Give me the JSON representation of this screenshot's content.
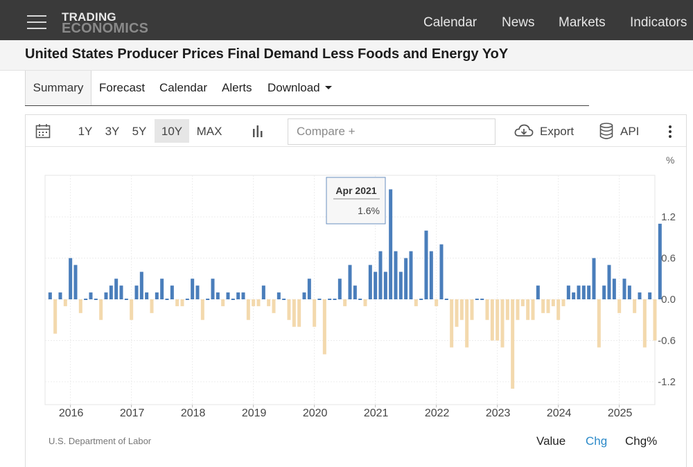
{
  "nav": {
    "logo_line1": "TRADING",
    "logo_line2": "ECONOMICS",
    "links": [
      "Calendar",
      "News",
      "Markets",
      "Indicators"
    ]
  },
  "page_title": "United States Producer Prices Final Demand Less Foods and Energy YoY",
  "tabs": [
    "Summary",
    "Forecast",
    "Calendar",
    "Alerts",
    "Download"
  ],
  "toolbar": {
    "ranges": [
      "1Y",
      "3Y",
      "5Y",
      "10Y",
      "MAX"
    ],
    "active_range": "10Y",
    "compare_placeholder": "Compare +",
    "export_label": "Export",
    "api_label": "API"
  },
  "colors": {
    "positive": "#4a7ebb",
    "negative": "#f3d9ad",
    "accent": "#2a89c8"
  },
  "chart_data": {
    "type": "bar",
    "title": "United States Producer Prices Final Demand Less Foods and Energy YoY",
    "unit_label": "%",
    "ylim": [
      -1.4,
      1.9
    ],
    "yticks": [
      "1.2",
      "0.6",
      "0.0",
      "-0.6",
      "-1.2"
    ],
    "ytick_values": [
      1.2,
      0.6,
      0.0,
      -0.6,
      -1.2
    ],
    "xticks": [
      "2016",
      "2017",
      "2018",
      "2019",
      "2020",
      "2021",
      "2022",
      "2023",
      "2024",
      "2025"
    ],
    "grid": true,
    "start": "2015-09",
    "x_range_months": [
      "2015-08",
      "2025-08"
    ],
    "values": [
      0.1,
      -0.5,
      0.1,
      -0.1,
      0.6,
      0.5,
      -0.2,
      0.0,
      0.1,
      0.0,
      -0.3,
      0.1,
      0.2,
      0.3,
      0.2,
      0.0,
      -0.3,
      0.2,
      0.4,
      0.1,
      -0.2,
      0.1,
      0.3,
      0.0,
      0.2,
      -0.1,
      -0.1,
      0.0,
      0.3,
      0.2,
      -0.3,
      0.0,
      0.3,
      0.1,
      -0.1,
      0.1,
      0.0,
      0.1,
      0.1,
      -0.3,
      -0.1,
      -0.1,
      0.2,
      -0.1,
      -0.2,
      0.1,
      0.0,
      -0.3,
      -0.4,
      -0.4,
      0.1,
      0.3,
      -0.4,
      0.0,
      -0.8,
      0.0,
      0.0,
      0.3,
      -0.1,
      0.5,
      0.2,
      0.0,
      -0.1,
      0.5,
      0.4,
      0.7,
      0.4,
      1.6,
      0.7,
      0.4,
      0.6,
      0.7,
      -0.1,
      0.0,
      1.0,
      0.7,
      -0.1,
      0.8,
      0.0,
      -0.7,
      -0.4,
      -0.3,
      -0.7,
      -0.3,
      0.0,
      0.0,
      -0.3,
      -0.6,
      -0.6,
      -0.7,
      -0.3,
      -1.3,
      -0.3,
      -0.1,
      -0.3,
      -0.3,
      0.2,
      -0.2,
      -0.2,
      -0.1,
      -0.3,
      -0.1,
      0.2,
      0.1,
      0.2,
      0.2,
      0.2,
      0.6,
      -0.7,
      0.2,
      0.5,
      0.3,
      -0.2,
      0.3,
      0.2,
      -0.2,
      0.1,
      -0.7,
      0.1,
      -0.6,
      1.1
    ],
    "tooltip": {
      "date": "Apr 2021",
      "value": "1.6%",
      "index": 67
    },
    "source": "U.S. Department of Labor",
    "modes": [
      "Value",
      "Chg",
      "Chg%"
    ],
    "active_mode": "Chg"
  }
}
